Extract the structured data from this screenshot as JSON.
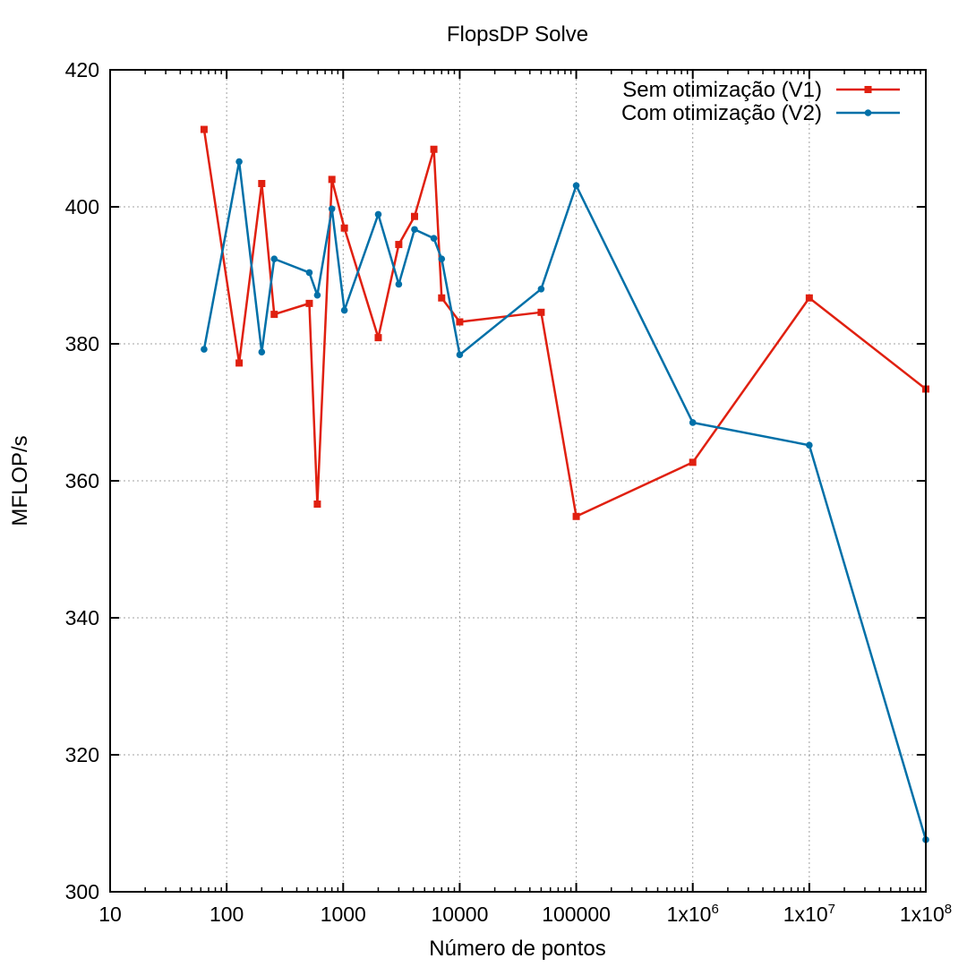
{
  "chart_data": {
    "type": "line",
    "title": "FlopsDP Solve",
    "xlabel": "Número de pontos",
    "ylabel": "MFLOP/s",
    "x_scale": "log",
    "xlim": [
      10,
      100000000
    ],
    "ylim": [
      300,
      420
    ],
    "grid": true,
    "legend_position": "top-right",
    "x_ticks": [
      {
        "value": 10,
        "label": "10"
      },
      {
        "value": 100,
        "label": "100"
      },
      {
        "value": 1000,
        "label": "1000"
      },
      {
        "value": 10000,
        "label": "10000"
      },
      {
        "value": 100000,
        "label": "100000"
      },
      {
        "value": 1000000,
        "label": "1x10",
        "exp": "6"
      },
      {
        "value": 10000000,
        "label": "1x10",
        "exp": "7"
      },
      {
        "value": 100000000,
        "label": "1x10",
        "exp": "8"
      }
    ],
    "y_ticks": [
      {
        "value": 300,
        "label": "300"
      },
      {
        "value": 320,
        "label": "320"
      },
      {
        "value": 340,
        "label": "340"
      },
      {
        "value": 360,
        "label": "360"
      },
      {
        "value": 380,
        "label": "380"
      },
      {
        "value": 400,
        "label": "400"
      },
      {
        "value": 420,
        "label": "420"
      }
    ],
    "series": [
      {
        "name": "Sem otimização (V1)",
        "color": "#e02010",
        "marker": "square",
        "points": [
          [
            64,
            411.3
          ],
          [
            128,
            377.2
          ],
          [
            200,
            403.4
          ],
          [
            256,
            384.3
          ],
          [
            512,
            385.9
          ],
          [
            600,
            356.6
          ],
          [
            800,
            404.0
          ],
          [
            1024,
            396.9
          ],
          [
            2000,
            380.9
          ],
          [
            3000,
            394.5
          ],
          [
            4096,
            398.6
          ],
          [
            6000,
            408.4
          ],
          [
            7000,
            386.7
          ],
          [
            10000,
            383.2
          ],
          [
            50000,
            384.6
          ],
          [
            100000,
            354.8
          ],
          [
            1000000,
            362.7
          ],
          [
            10000000,
            386.7
          ],
          [
            100000000,
            373.4
          ]
        ]
      },
      {
        "name": "Com otimização (V2)",
        "color": "#0070a8",
        "marker": "circle",
        "points": [
          [
            64,
            379.2
          ],
          [
            128,
            406.6
          ],
          [
            200,
            378.8
          ],
          [
            256,
            392.4
          ],
          [
            512,
            390.4
          ],
          [
            600,
            387.1
          ],
          [
            800,
            399.7
          ],
          [
            1024,
            384.9
          ],
          [
            2000,
            398.9
          ],
          [
            3000,
            388.7
          ],
          [
            4096,
            396.7
          ],
          [
            6000,
            395.4
          ],
          [
            7000,
            392.4
          ],
          [
            10000,
            378.4
          ],
          [
            50000,
            388.0
          ],
          [
            100000,
            403.1
          ],
          [
            1000000,
            368.5
          ],
          [
            10000000,
            365.2
          ],
          [
            100000000,
            307.6
          ]
        ]
      }
    ]
  }
}
